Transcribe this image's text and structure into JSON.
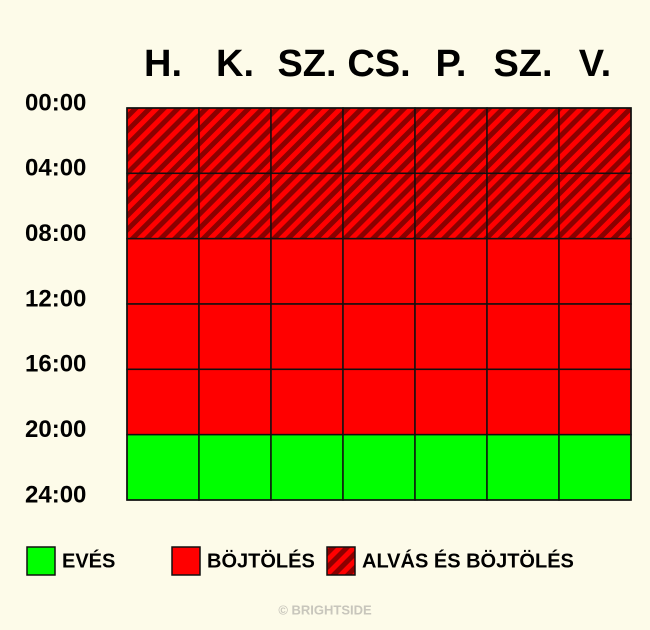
{
  "days": [
    "H.",
    "K.",
    "SZ.",
    "CS.",
    "P.",
    "SZ.",
    "V."
  ],
  "times": [
    "00:00",
    "04:00",
    "08:00",
    "12:00",
    "16:00",
    "20:00",
    "24:00"
  ],
  "legend": [
    {
      "label": "EVÉS",
      "color": "#00ff00"
    },
    {
      "label": "BÖJTÖLÉS",
      "color": "#ff0000"
    },
    {
      "label": "ALVÁS ÉS BÖJTÖLÉS",
      "color": "#ff0000",
      "stripe_color": "#8b0000"
    }
  ],
  "footer": "© BRIGHTSIDE"
}
